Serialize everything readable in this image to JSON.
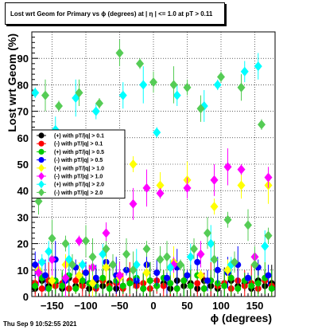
{
  "title": "Lost wrt Geom for Primary vs ϕ (degrees) at |  η | <= 1.0 at pT > 0.11",
  "timestamp": "Thu Sep  9 10:52:55 2021",
  "chart_data": {
    "type": "scatter",
    "xlabel": "ϕ (degrees)",
    "ylabel": "Lost wrt Geom (%)",
    "xlim": [
      -180,
      180
    ],
    "ylim": [
      0,
      100
    ],
    "x_ticks": [
      -150,
      -100,
      -50,
      0,
      50,
      100,
      150
    ],
    "y_ticks": [
      10,
      20,
      30,
      40,
      50,
      60,
      70,
      80,
      90
    ],
    "grid": true,
    "legend_position": "middle-left",
    "series": [
      {
        "name": "(+) with pT/|q| > 0.1",
        "color": "#000000",
        "marker": "circle",
        "x": [
          -175,
          -165,
          -155,
          -145,
          -135,
          -125,
          -115,
          -105,
          -95,
          -85,
          -75,
          -65,
          -55,
          -45,
          -35,
          -25,
          -15,
          -5,
          5,
          15,
          25,
          35,
          45,
          55,
          65,
          75,
          85,
          95,
          105,
          115,
          125,
          135,
          145,
          155,
          165,
          175
        ],
        "y": [
          3,
          6,
          4,
          5,
          3,
          7,
          4,
          5,
          3,
          6,
          4,
          5,
          3,
          4,
          6,
          5,
          3,
          6,
          4,
          5,
          3,
          6,
          4,
          5,
          3,
          6,
          4,
          3,
          5,
          6,
          4,
          5,
          3,
          6,
          4,
          5
        ]
      },
      {
        "name": "(-) with pT/|q| > 0.1",
        "color": "#ff0000",
        "marker": "circle",
        "x": [
          -175,
          -165,
          -155,
          -145,
          -135,
          -125,
          -115,
          -105,
          -95,
          -85,
          -75,
          -65,
          -55,
          -45,
          -35,
          -25,
          -15,
          -5,
          5,
          15,
          25,
          35,
          45,
          55,
          65,
          75,
          85,
          95,
          105,
          115,
          125,
          135,
          145,
          155,
          165,
          175
        ],
        "y": [
          5,
          3,
          6,
          4,
          5,
          3,
          6,
          4,
          5,
          3,
          6,
          4,
          5,
          3,
          6,
          4,
          5,
          3,
          6,
          4,
          5,
          3,
          6,
          4,
          5,
          3,
          6,
          4,
          5,
          3,
          6,
          4,
          5,
          3,
          6,
          4
        ]
      },
      {
        "name": "(+) with pT/|q| > 0.5",
        "color": "#00cc00",
        "marker": "circle",
        "x": [
          -175,
          -165,
          -155,
          -145,
          -135,
          -125,
          -115,
          -105,
          -95,
          -85,
          -75,
          -65,
          -55,
          -45,
          -35,
          -25,
          -15,
          -5,
          5,
          15,
          25,
          35,
          45,
          55,
          65,
          75,
          85,
          95,
          105,
          115,
          125,
          135,
          145,
          155,
          165,
          175
        ],
        "y": [
          4,
          7,
          3,
          6,
          4,
          8,
          3,
          6,
          5,
          4,
          7,
          3,
          6,
          4,
          5,
          7,
          3,
          6,
          4,
          7,
          5,
          3,
          6,
          4,
          8,
          3,
          6,
          5,
          4,
          7,
          3,
          6,
          4,
          5,
          7,
          3
        ]
      },
      {
        "name": "(-) with pT/|q| > 0.5",
        "color": "#0000ff",
        "marker": "circle",
        "x": [
          -175,
          -160,
          -145,
          -130,
          -115,
          -100,
          -85,
          -70,
          -55,
          -40,
          -25,
          -10,
          5,
          20,
          35,
          50,
          65,
          80,
          95,
          110,
          125,
          140,
          155,
          170
        ],
        "y": [
          12,
          8,
          14,
          6,
          11,
          9,
          7,
          13,
          8,
          10,
          6,
          12,
          9,
          7,
          11,
          8,
          13,
          6,
          10,
          9,
          12,
          7,
          11,
          8
        ]
      },
      {
        "name": "(+) with pT/|q| > 1.0",
        "color": "#ffff00",
        "marker": "diamond",
        "x": [
          -170,
          -150,
          -130,
          -110,
          -90,
          -70,
          -50,
          -30,
          -10,
          10,
          30,
          50,
          70,
          90,
          110,
          130,
          150,
          170
        ],
        "y": [
          10,
          6,
          12,
          8,
          5,
          11,
          7,
          50,
          9,
          42,
          13,
          44,
          8,
          34,
          10,
          42,
          12,
          42
        ]
      },
      {
        "name": "(-) with pT/|q| > 1.0",
        "color": "#ff00ff",
        "marker": "diamond",
        "x": [
          -170,
          -150,
          -130,
          -110,
          -90,
          -70,
          -50,
          -30,
          -10,
          10,
          30,
          50,
          70,
          90,
          110,
          130,
          150,
          170
        ],
        "y": [
          9,
          14,
          7,
          21,
          11,
          24,
          8,
          35,
          41,
          39,
          12,
          41,
          16,
          44,
          49,
          48,
          15,
          45
        ]
      },
      {
        "name": "(+) with pT/|q| > 2.0",
        "color": "#00ffff",
        "marker": "diamond",
        "x": [
          -175,
          -165,
          -155,
          -145,
          -125,
          -115,
          -105,
          -85,
          -75,
          -45,
          -25,
          -15,
          5,
          25,
          35,
          55,
          75,
          85,
          95,
          115,
          135,
          155,
          165
        ],
        "y": [
          77,
          13,
          17,
          63,
          14,
          75,
          12,
          70,
          16,
          76,
          12,
          80,
          62,
          11,
          76,
          15,
          72,
          20,
          80,
          12,
          85,
          87,
          19
        ]
      },
      {
        "name": "(-) with pT/|q| > 2.0",
        "color": "#55cc55",
        "marker": "diamond",
        "x": [
          -170,
          -160,
          -150,
          -140,
          -130,
          -120,
          -110,
          -100,
          -90,
          -80,
          -70,
          -60,
          -50,
          -40,
          -30,
          -20,
          -10,
          0,
          10,
          20,
          30,
          40,
          50,
          60,
          70,
          80,
          90,
          100,
          110,
          120,
          130,
          140,
          150,
          160,
          170
        ],
        "y": [
          36,
          76,
          22,
          72,
          20,
          12,
          77,
          21,
          15,
          73,
          18,
          12,
          92,
          16,
          10,
          88,
          18,
          81,
          14,
          15,
          80,
          12,
          79,
          18,
          71,
          24,
          14,
          83,
          29,
          13,
          79,
          27,
          12,
          65,
          23
        ]
      }
    ]
  }
}
